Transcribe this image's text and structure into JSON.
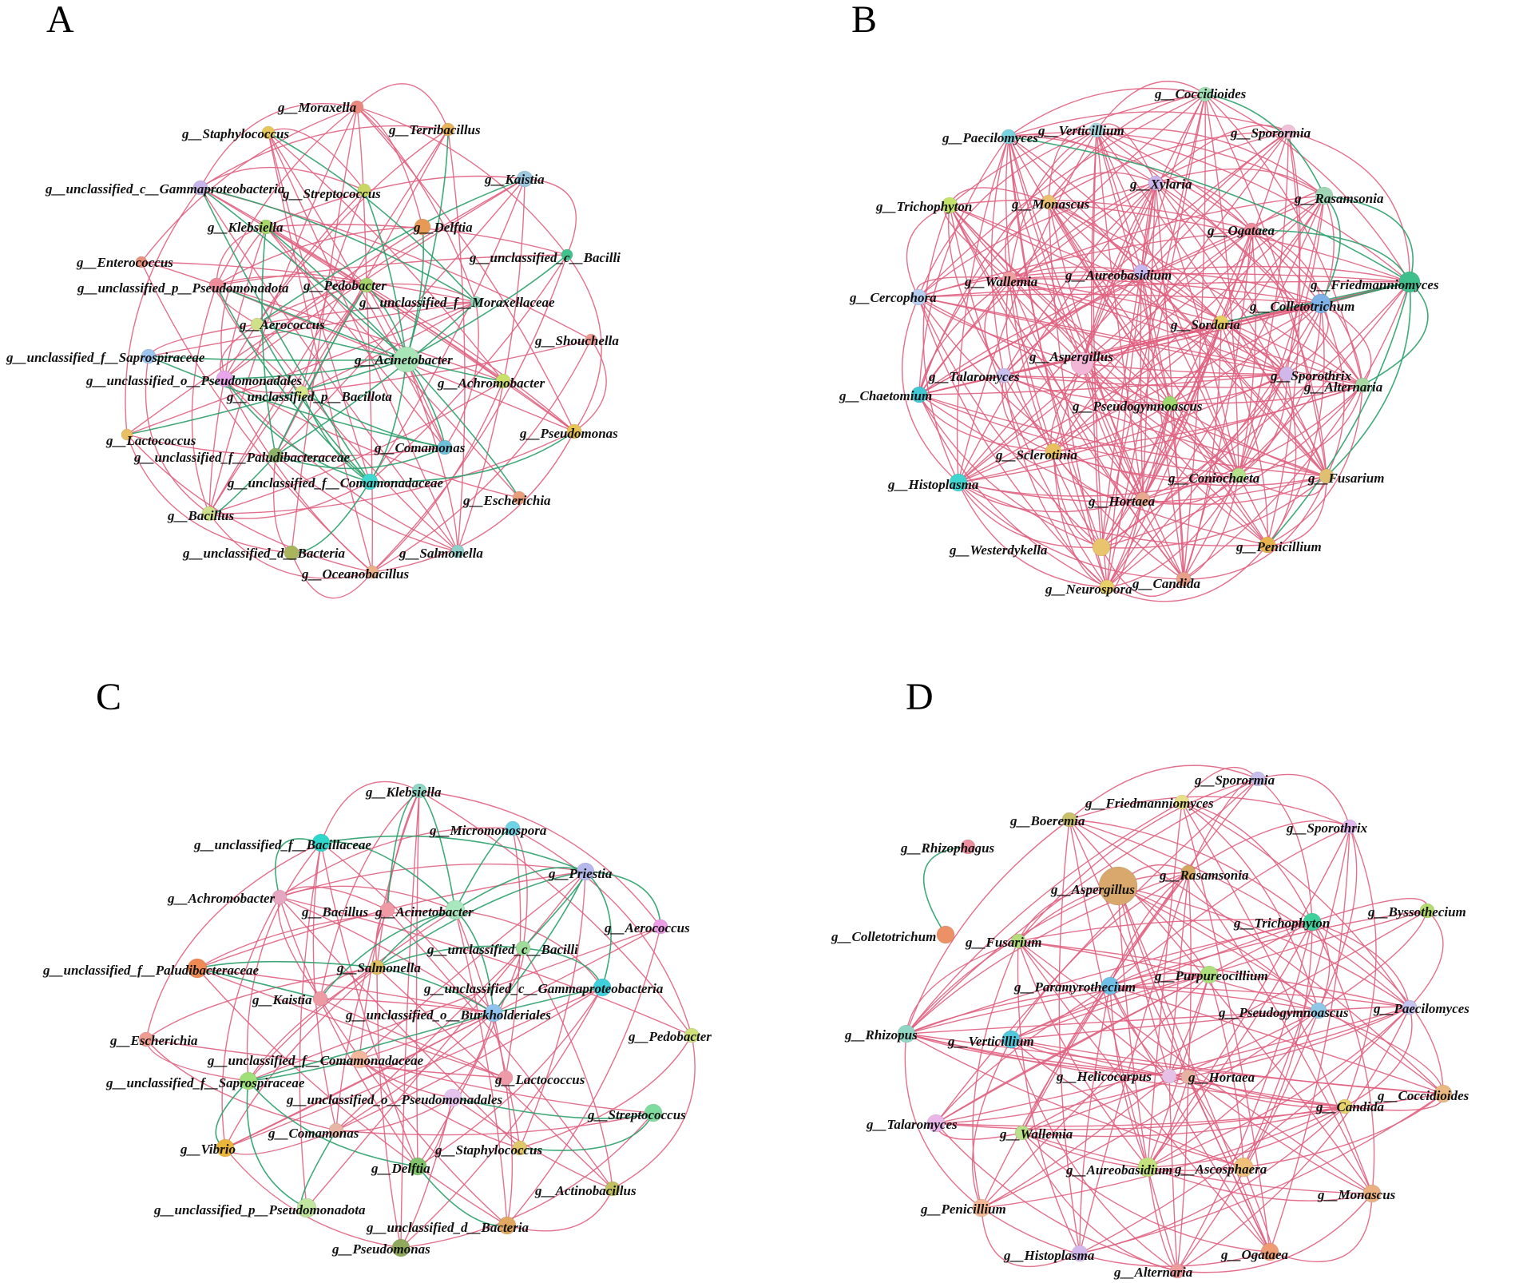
{
  "colors": {
    "positive_edge": "#e0607f",
    "negative_edge": "#2aa06a"
  },
  "panels": [
    {
      "letter": "A",
      "nodes": [
        {
          "label": "g__Moraxella",
          "color": "#e9897e"
        },
        {
          "label": "g__Staphylococcus",
          "color": "#e8c75a"
        },
        {
          "label": "g__Terribacillus",
          "color": "#e8b55c"
        },
        {
          "label": "g__Kaistia",
          "color": "#9ec8e0"
        },
        {
          "label": "g__unclassified_c__Gammaproteobacteria",
          "color": "#c6b6ec"
        },
        {
          "label": "g__Streptococcus",
          "color": "#c9d864"
        },
        {
          "label": "g__Klebsiella",
          "color": "#a8d86a"
        },
        {
          "label": "g__Delftia",
          "color": "#e79a55"
        },
        {
          "label": "g__Enterococcus",
          "color": "#e9907c"
        },
        {
          "label": "g__unclassified_c__Bacilli",
          "color": "#3fc28c"
        },
        {
          "label": "g__unclassified_p__Pseudomonadota",
          "color": "#ee8c9a"
        },
        {
          "label": "g__Pedobacter",
          "color": "#a6d46c"
        },
        {
          "label": "g__unclassified_f__Moraxellaceae",
          "color": "#8fd2b8"
        },
        {
          "label": "g__Aerococcus",
          "color": "#cfe088"
        },
        {
          "label": "g__unclassified_f__Saprospiraceae",
          "color": "#9cc5f0"
        },
        {
          "label": "g__Shouchella",
          "color": "#ef9b92"
        },
        {
          "label": "g__Acinetobacter",
          "color": "#a8e6b8"
        },
        {
          "label": "g__unclassified_o__Pseudomonadales",
          "color": "#e9a6ec"
        },
        {
          "label": "g__unclassified_p__Bacillota",
          "color": "#d7e58c"
        },
        {
          "label": "g__Achromobacter",
          "color": "#c9e06a"
        },
        {
          "label": "g__Lactococcus",
          "color": "#e8bf62"
        },
        {
          "label": "g__Pseudomonas",
          "color": "#e8c255"
        },
        {
          "label": "g__unclassified_f__Paludibacteraceae",
          "color": "#8fb26a"
        },
        {
          "label": "g__Comamonas",
          "color": "#6cc0d9"
        },
        {
          "label": "g__unclassified_f__Comamonadaceae",
          "color": "#3fd9d0"
        },
        {
          "label": "g__Escherichia",
          "color": "#e9a07a"
        },
        {
          "label": "g__Bacillus",
          "color": "#cfe08a"
        },
        {
          "label": "g__unclassified_d__Bacteria",
          "color": "#a9b45c"
        },
        {
          "label": "g__Salmonella",
          "color": "#8fd0c8"
        },
        {
          "label": "g__Oceanobacillus",
          "color": "#eab08a"
        }
      ]
    },
    {
      "letter": "B",
      "nodes": [
        {
          "label": "g__Verticillium",
          "color": "#a9d7e0"
        },
        {
          "label": "g__Coccidioides",
          "color": "#9ee0b4"
        },
        {
          "label": "g__Paecilomyces",
          "color": "#78d4e0"
        },
        {
          "label": "g__Sporormia",
          "color": "#efc0d8"
        },
        {
          "label": "g__Xylaria",
          "color": "#c9b4ec"
        },
        {
          "label": "g__Trichophyton",
          "color": "#c3e36a"
        },
        {
          "label": "g__Monascus",
          "color": "#e8c070"
        },
        {
          "label": "g__Rasamsonia",
          "color": "#9ed6b6"
        },
        {
          "label": "g__Ogataea",
          "color": "#ed8d9b"
        },
        {
          "label": "g__Wallemia",
          "color": "#ef9fa0"
        },
        {
          "label": "g__Aureobasidium",
          "color": "#c7b7ee"
        },
        {
          "label": "g__Friedmanniomyces",
          "color": "#3fbf8c"
        },
        {
          "label": "g__Cercophora",
          "color": "#b6cff0"
        },
        {
          "label": "g__Colletotrichum",
          "color": "#7fb2e8"
        },
        {
          "label": "g__Sordaria",
          "color": "#e8d060"
        },
        {
          "label": "g__Aspergillus",
          "color": "#f3b6d6"
        },
        {
          "label": "g__Talaromyces",
          "color": "#c9c0f0"
        },
        {
          "label": "g__Alternaria",
          "color": "#a8d8a4"
        },
        {
          "label": "g__Sporothrix",
          "color": "#d0b8ea"
        },
        {
          "label": "g__Chaetomium",
          "color": "#42c8d4"
        },
        {
          "label": "g__Pseudogymnoascus",
          "color": "#9fd96e"
        },
        {
          "label": "g__Sclerotinia",
          "color": "#e8c060"
        },
        {
          "label": "g__Histoplasma",
          "color": "#3fd6cf"
        },
        {
          "label": "g__Coniochaeta",
          "color": "#b4e08a"
        },
        {
          "label": "g__Fusarium",
          "color": "#e0c070"
        },
        {
          "label": "g__Hortaea",
          "color": "#e9a98f"
        },
        {
          "label": "g__Westerdykella",
          "color": "#e8c46c"
        },
        {
          "label": "g__Penicillium",
          "color": "#e8b24e"
        },
        {
          "label": "g__Neurospora",
          "color": "#e7d068"
        },
        {
          "label": "g__Candida",
          "color": "#e9a088"
        }
      ]
    },
    {
      "letter": "C",
      "nodes": [
        {
          "label": "g__Klebsiella",
          "color": "#8fd6c4"
        },
        {
          "label": "g__Micromonospora",
          "color": "#6fd3e6"
        },
        {
          "label": "g__unclassified_f__Bacillaceae",
          "color": "#2fd6cc"
        },
        {
          "label": "g__Priestia",
          "color": "#b4b8ea"
        },
        {
          "label": "g__Achromobacter",
          "color": "#e6a8c0"
        },
        {
          "label": "g__Bacillus",
          "color": "#ef9aa4"
        },
        {
          "label": "g__Acinetobacter",
          "color": "#a9e7bf"
        },
        {
          "label": "g__Aerococcus",
          "color": "#ee9de8"
        },
        {
          "label": "g__unclassified_c__Bacilli",
          "color": "#9fdc9a"
        },
        {
          "label": "g__unclassified_f__Paludibacteraceae",
          "color": "#f08a55"
        },
        {
          "label": "g__Salmonella",
          "color": "#e0c060"
        },
        {
          "label": "g__Kaistia",
          "color": "#ee9aa2"
        },
        {
          "label": "g__unclassified_c__Gammaproteobacteria",
          "color": "#3fd0dc"
        },
        {
          "label": "g__unclassified_o__Burkholderiales",
          "color": "#8fc3ee"
        },
        {
          "label": "g__Pedobacter",
          "color": "#d0e07a"
        },
        {
          "label": "g__Escherichia",
          "color": "#ef9d92"
        },
        {
          "label": "g__unclassified_f__Comamonadaceae",
          "color": "#f2b79c"
        },
        {
          "label": "g__Lactococcus",
          "color": "#ef9aa8"
        },
        {
          "label": "g__unclassified_f__Saprospiraceae",
          "color": "#9fe078"
        },
        {
          "label": "g__unclassified_o__Pseudomonadales",
          "color": "#e6c2ef"
        },
        {
          "label": "g__Streptococcus",
          "color": "#7edc9e"
        },
        {
          "label": "g__Comamonas",
          "color": "#e7b6a4"
        },
        {
          "label": "g__Vibrio",
          "color": "#eab53a"
        },
        {
          "label": "g__Staphylococcus",
          "color": "#e0c86a"
        },
        {
          "label": "g__Delftia",
          "color": "#7fc26a"
        },
        {
          "label": "g__Actinobacillus",
          "color": "#c0c060"
        },
        {
          "label": "g__unclassified_p__Pseudomonadota",
          "color": "#c0e6a0"
        },
        {
          "label": "g__unclassified_d__Bacteria",
          "color": "#e0a860"
        },
        {
          "label": "g__Pseudomonas",
          "color": "#8fa85c"
        }
      ]
    },
    {
      "letter": "D",
      "nodes": [
        {
          "label": "g__Sporormia",
          "color": "#c7c0ec"
        },
        {
          "label": "g__Friedmanniomyces",
          "color": "#e7e088"
        },
        {
          "label": "g__Boeremia",
          "color": "#c9c06a"
        },
        {
          "label": "g__Sporothrix",
          "color": "#e2b6ee"
        },
        {
          "label": "g__Rhizophagus",
          "color": "#ee8f9f"
        },
        {
          "label": "g__Aspergillus",
          "color": "#d8a86c"
        },
        {
          "label": "g__Rasamsonia",
          "color": "#d4a860"
        },
        {
          "label": "g__Byssothecium",
          "color": "#b4dc6c"
        },
        {
          "label": "g__Trichophyton",
          "color": "#3fd19c"
        },
        {
          "label": "g__Colletotrichum",
          "color": "#ec9065"
        },
        {
          "label": "g__Fusarium",
          "color": "#b3dd7c"
        },
        {
          "label": "g__Purpureocillium",
          "color": "#ade07c"
        },
        {
          "label": "g__Paramyrothecium",
          "color": "#6fc0e6"
        },
        {
          "label": "g__Paecilomyces",
          "color": "#c4c2ee"
        },
        {
          "label": "g__Pseudogymnoascus",
          "color": "#8fc8e6"
        },
        {
          "label": "g__Rhizopus",
          "color": "#8fd6c4"
        },
        {
          "label": "g__Verticillium",
          "color": "#4fc8dc"
        },
        {
          "label": "g__Helicocarpus",
          "color": "#e6c0e6"
        },
        {
          "label": "g__Hortaea",
          "color": "#e7b2a2"
        },
        {
          "label": "g__Candida",
          "color": "#e8d46c"
        },
        {
          "label": "g__Coccidioides",
          "color": "#eab880"
        },
        {
          "label": "g__Talaromyces",
          "color": "#e9b6ea"
        },
        {
          "label": "g__Wallemia",
          "color": "#b9e088"
        },
        {
          "label": "g__Aureobasidium",
          "color": "#c3e27e"
        },
        {
          "label": "g__Ascosphaera",
          "color": "#eec07a"
        },
        {
          "label": "g__Monascus",
          "color": "#eab080"
        },
        {
          "label": "g__Penicillium",
          "color": "#f3b994"
        },
        {
          "label": "g__Histoplasma",
          "color": "#d3b8ee"
        },
        {
          "label": "g__Ogataea",
          "color": "#ef9c74"
        },
        {
          "label": "g__Alternaria",
          "color": "#ee9c9c"
        }
      ]
    }
  ]
}
